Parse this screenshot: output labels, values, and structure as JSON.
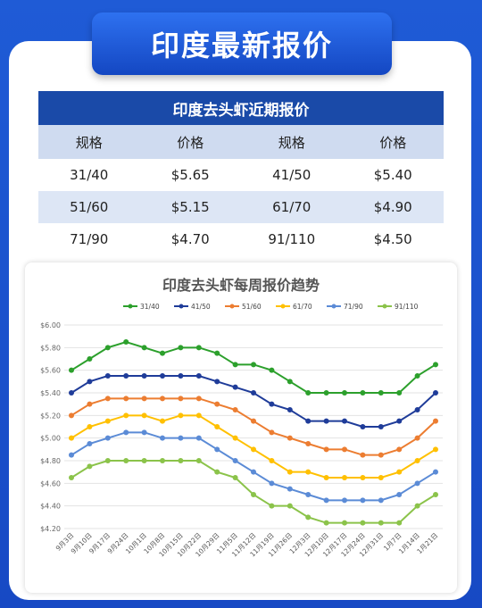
{
  "header": {
    "title": "印度最新报价"
  },
  "table": {
    "caption": "印度去头虾近期报价",
    "columns": [
      "规格",
      "价格",
      "规格",
      "价格"
    ],
    "rows": [
      [
        "31/40",
        "$5.65",
        "41/50",
        "$5.40"
      ],
      [
        "51/60",
        "$5.15",
        "61/70",
        "$4.90"
      ],
      [
        "71/90",
        "$4.70",
        "91/110",
        "$4.50"
      ]
    ]
  },
  "chart_data": {
    "type": "line",
    "title": "印度去头虾每周报价趋势",
    "xlabel": "",
    "ylabel": "",
    "ylim": [
      4.2,
      6.0
    ],
    "yticks": [
      "$4.20",
      "$4.40",
      "$4.60",
      "$4.80",
      "$5.00",
      "$5.20",
      "$5.40",
      "$5.60",
      "$5.80",
      "$6.00"
    ],
    "grid": true,
    "legend_position": "top",
    "x_tick_labels": [
      "9月3日",
      "9月10日",
      "9月17日",
      "9月24日",
      "10月1日",
      "10月8日",
      "10月15日",
      "10月22日",
      "10月29日",
      "11月5日",
      "11月12日",
      "11月19日",
      "11月26日",
      "12月3日",
      "12月10日",
      "12月17日",
      "12月24日",
      "12月31日",
      "1月7日",
      "1月14日",
      "1月21日"
    ],
    "series": [
      {
        "name": "31/40",
        "color": "#2ca02c",
        "values": [
          5.6,
          5.7,
          5.8,
          5.85,
          5.8,
          5.75,
          5.8,
          5.8,
          5.75,
          5.65,
          5.65,
          5.6,
          5.5,
          5.4,
          5.4,
          5.4,
          5.4,
          5.4,
          5.4,
          5.55,
          5.65
        ]
      },
      {
        "name": "41/50",
        "color": "#1f3c99",
        "values": [
          5.4,
          5.5,
          5.55,
          5.55,
          5.55,
          5.55,
          5.55,
          5.55,
          5.5,
          5.45,
          5.4,
          5.3,
          5.25,
          5.15,
          5.15,
          5.15,
          5.1,
          5.1,
          5.15,
          5.25,
          5.4
        ]
      },
      {
        "name": "51/60",
        "color": "#ec7d31",
        "values": [
          5.2,
          5.3,
          5.35,
          5.35,
          5.35,
          5.35,
          5.35,
          5.35,
          5.3,
          5.25,
          5.15,
          5.05,
          5.0,
          4.95,
          4.9,
          4.9,
          4.85,
          4.85,
          4.9,
          5.0,
          5.15
        ]
      },
      {
        "name": "61/70",
        "color": "#ffc000",
        "values": [
          5.0,
          5.1,
          5.15,
          5.2,
          5.2,
          5.15,
          5.2,
          5.2,
          5.1,
          5.0,
          4.9,
          4.8,
          4.7,
          4.7,
          4.65,
          4.65,
          4.65,
          4.65,
          4.7,
          4.8,
          4.9
        ]
      },
      {
        "name": "71/90",
        "color": "#5b8bd6",
        "values": [
          4.85,
          4.95,
          5.0,
          5.05,
          5.05,
          5.0,
          5.0,
          5.0,
          4.9,
          4.8,
          4.7,
          4.6,
          4.55,
          4.5,
          4.45,
          4.45,
          4.45,
          4.45,
          4.5,
          4.6,
          4.7
        ]
      },
      {
        "name": "91/110",
        "color": "#8bc34a",
        "values": [
          4.65,
          4.75,
          4.8,
          4.8,
          4.8,
          4.8,
          4.8,
          4.8,
          4.7,
          4.65,
          4.5,
          4.4,
          4.4,
          4.3,
          4.25,
          4.25,
          4.25,
          4.25,
          4.25,
          4.4,
          4.5
        ]
      }
    ]
  }
}
